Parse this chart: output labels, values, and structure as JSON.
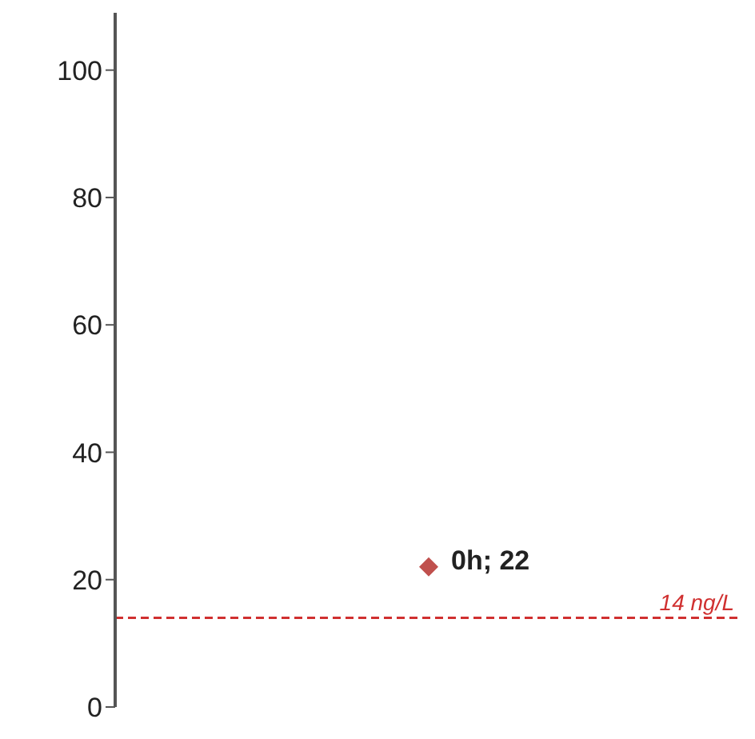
{
  "chart_data": {
    "type": "scatter",
    "categories": [
      null
    ],
    "series": [
      {
        "color": "#c0504d",
        "values": [
          22
        ],
        "value_labels": [
          "0h; 22"
        ]
      }
    ],
    "marker": "diamond",
    "ylim": [
      0,
      109
    ],
    "yticks": [
      0,
      20,
      40,
      60,
      80,
      100
    ],
    "tick_labels": "y",
    "grid": false,
    "legend": false,
    "ref_lines": [
      {
        "axis": "y",
        "value": 14,
        "label": "14 ng/L",
        "color": "#d03030",
        "line_style": "dashed"
      }
    ]
  }
}
